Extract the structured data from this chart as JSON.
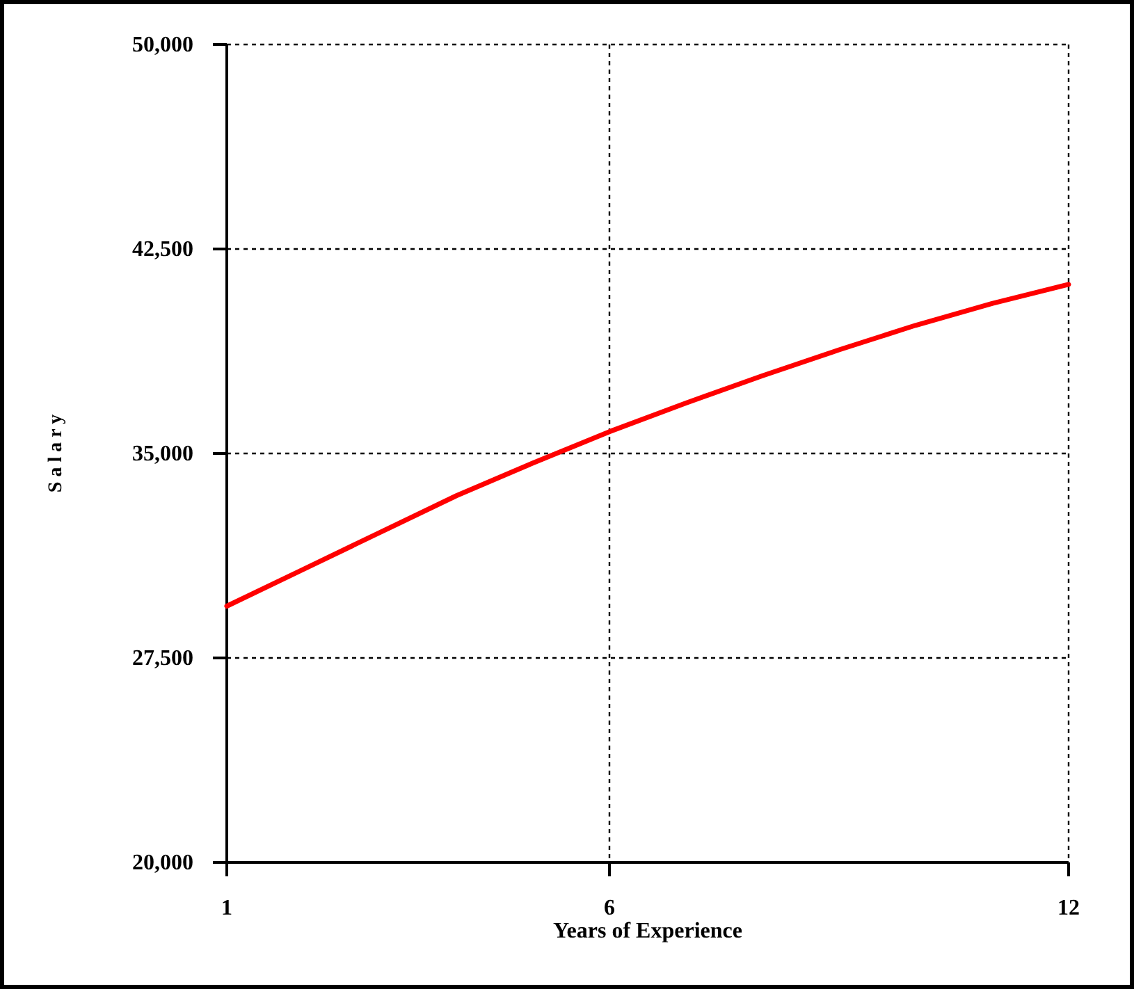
{
  "chart_data": {
    "type": "line",
    "xlabel": "Years of Experience",
    "ylabel": "S a l a r y",
    "x": [
      1,
      2,
      3,
      4,
      5,
      6,
      7,
      8,
      9,
      10,
      11,
      12
    ],
    "series": [
      {
        "color": "#ff0000",
        "values": [
          29400,
          30750,
          32100,
          33450,
          34650,
          35800,
          36850,
          37850,
          38800,
          39700,
          40500,
          41200
        ]
      }
    ],
    "xlim": [
      1,
      12
    ],
    "xticks": [
      1,
      6,
      12
    ],
    "ylim": [
      20000,
      50000
    ],
    "yticks": [
      {
        "value": 20000,
        "label": "20,000"
      },
      {
        "value": 27500,
        "label": "27,500"
      },
      {
        "value": 35000,
        "label": "35,000"
      },
      {
        "value": 42500,
        "label": "42,500"
      },
      {
        "value": 50000,
        "label": "50,000"
      }
    ],
    "grid": true,
    "marker": "none",
    "line_style": "solid"
  }
}
